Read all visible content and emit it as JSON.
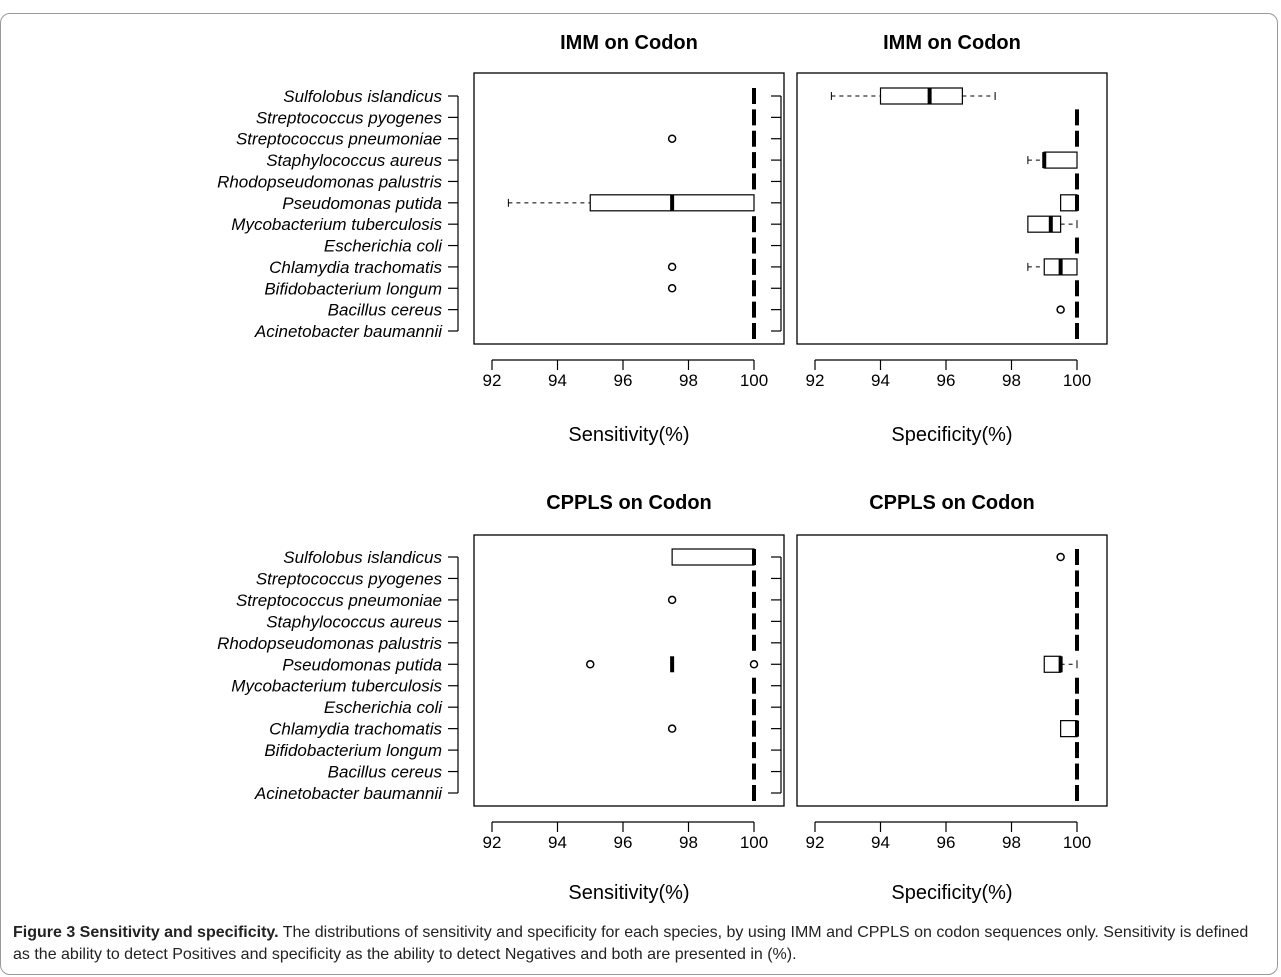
{
  "caption": {
    "label": "Figure 3 Sensitivity and specificity.",
    "text": " The distributions of sensitivity and specificity for each species, by using IMM and CPPLS on codon sequences only. Sensitivity is defined as the ability to detect Positives and specificity as the ability to detect Negatives and both are presented in (%)."
  },
  "chart_data": [
    {
      "type": "boxplot",
      "title": "IMM on Codon",
      "xlabel": "Sensitivity(%)",
      "xlim": [
        92,
        100
      ],
      "xticks": [
        92,
        94,
        96,
        98,
        100
      ],
      "categories": [
        "Sulfolobus islandicus",
        "Streptococcus pyogenes",
        "Streptococcus pneumoniae",
        "Staphylococcus aureus",
        "Rhodopseudomonas palustris",
        "Pseudomonas putida",
        "Mycobacterium tuberculosis",
        "Escherichia coli",
        "Chlamydia trachomatis",
        "Bifidobacterium longum",
        "Bacillus cereus",
        "Acinetobacter baumannii"
      ],
      "boxes": [
        {
          "min": 100,
          "q1": 100,
          "median": 100,
          "q3": 100,
          "max": 100,
          "outliers": []
        },
        {
          "min": 100,
          "q1": 100,
          "median": 100,
          "q3": 100,
          "max": 100,
          "outliers": []
        },
        {
          "min": 100,
          "q1": 100,
          "median": 100,
          "q3": 100,
          "max": 100,
          "outliers": [
            97.5
          ]
        },
        {
          "min": 100,
          "q1": 100,
          "median": 100,
          "q3": 100,
          "max": 100,
          "outliers": []
        },
        {
          "min": 100,
          "q1": 100,
          "median": 100,
          "q3": 100,
          "max": 100,
          "outliers": []
        },
        {
          "min": 92.5,
          "q1": 95,
          "median": 97.5,
          "q3": 100,
          "max": 100,
          "outliers": []
        },
        {
          "min": 100,
          "q1": 100,
          "median": 100,
          "q3": 100,
          "max": 100,
          "outliers": []
        },
        {
          "min": 100,
          "q1": 100,
          "median": 100,
          "q3": 100,
          "max": 100,
          "outliers": []
        },
        {
          "min": 100,
          "q1": 100,
          "median": 100,
          "q3": 100,
          "max": 100,
          "outliers": [
            97.5
          ]
        },
        {
          "min": 100,
          "q1": 100,
          "median": 100,
          "q3": 100,
          "max": 100,
          "outliers": [
            97.5
          ]
        },
        {
          "min": 100,
          "q1": 100,
          "median": 100,
          "q3": 100,
          "max": 100,
          "outliers": []
        },
        {
          "min": 100,
          "q1": 100,
          "median": 100,
          "q3": 100,
          "max": 100,
          "outliers": []
        }
      ]
    },
    {
      "type": "boxplot",
      "title": "IMM on Codon",
      "xlabel": "Specificity(%)",
      "xlim": [
        92,
        100
      ],
      "xticks": [
        92,
        94,
        96,
        98,
        100
      ],
      "categories": [
        "Sulfolobus islandicus",
        "Streptococcus pyogenes",
        "Streptococcus pneumoniae",
        "Staphylococcus aureus",
        "Rhodopseudomonas palustris",
        "Pseudomonas putida",
        "Mycobacterium tuberculosis",
        "Escherichia coli",
        "Chlamydia trachomatis",
        "Bifidobacterium longum",
        "Bacillus cereus",
        "Acinetobacter baumannii"
      ],
      "boxes": [
        {
          "min": 92.5,
          "q1": 94,
          "median": 95.5,
          "q3": 96.5,
          "max": 97.5,
          "outliers": []
        },
        {
          "min": 100,
          "q1": 100,
          "median": 100,
          "q3": 100,
          "max": 100,
          "outliers": []
        },
        {
          "min": 100,
          "q1": 100,
          "median": 100,
          "q3": 100,
          "max": 100,
          "outliers": []
        },
        {
          "min": 98.5,
          "q1": 99,
          "median": 99,
          "q3": 100,
          "max": 100,
          "outliers": []
        },
        {
          "min": 100,
          "q1": 100,
          "median": 100,
          "q3": 100,
          "max": 100,
          "outliers": []
        },
        {
          "min": 99.5,
          "q1": 99.5,
          "median": 100,
          "q3": 100,
          "max": 100,
          "outliers": []
        },
        {
          "min": 98.5,
          "q1": 98.5,
          "median": 99.2,
          "q3": 99.5,
          "max": 100,
          "outliers": []
        },
        {
          "min": 100,
          "q1": 100,
          "median": 100,
          "q3": 100,
          "max": 100,
          "outliers": []
        },
        {
          "min": 98.5,
          "q1": 99,
          "median": 99.5,
          "q3": 100,
          "max": 100,
          "outliers": []
        },
        {
          "min": 100,
          "q1": 100,
          "median": 100,
          "q3": 100,
          "max": 100,
          "outliers": []
        },
        {
          "min": 100,
          "q1": 100,
          "median": 100,
          "q3": 100,
          "max": 100,
          "outliers": [
            99.5
          ]
        },
        {
          "min": 100,
          "q1": 100,
          "median": 100,
          "q3": 100,
          "max": 100,
          "outliers": []
        }
      ]
    },
    {
      "type": "boxplot",
      "title": "CPPLS on Codon",
      "xlabel": "Sensitivity(%)",
      "xlim": [
        92,
        100
      ],
      "xticks": [
        92,
        94,
        96,
        98,
        100
      ],
      "categories": [
        "Sulfolobus islandicus",
        "Streptococcus pyogenes",
        "Streptococcus pneumoniae",
        "Staphylococcus aureus",
        "Rhodopseudomonas palustris",
        "Pseudomonas putida",
        "Mycobacterium tuberculosis",
        "Escherichia coli",
        "Chlamydia trachomatis",
        "Bifidobacterium longum",
        "Bacillus cereus",
        "Acinetobacter baumannii"
      ],
      "boxes": [
        {
          "min": 97.5,
          "q1": 97.5,
          "median": 100,
          "q3": 100,
          "max": 100,
          "outliers": []
        },
        {
          "min": 100,
          "q1": 100,
          "median": 100,
          "q3": 100,
          "max": 100,
          "outliers": []
        },
        {
          "min": 100,
          "q1": 100,
          "median": 100,
          "q3": 100,
          "max": 100,
          "outliers": [
            97.5
          ]
        },
        {
          "min": 100,
          "q1": 100,
          "median": 100,
          "q3": 100,
          "max": 100,
          "outliers": []
        },
        {
          "min": 100,
          "q1": 100,
          "median": 100,
          "q3": 100,
          "max": 100,
          "outliers": []
        },
        {
          "min": 97.5,
          "q1": 97.5,
          "median": 97.5,
          "q3": 97.5,
          "max": 97.5,
          "outliers": [
            95,
            100
          ]
        },
        {
          "min": 100,
          "q1": 100,
          "median": 100,
          "q3": 100,
          "max": 100,
          "outliers": []
        },
        {
          "min": 100,
          "q1": 100,
          "median": 100,
          "q3": 100,
          "max": 100,
          "outliers": []
        },
        {
          "min": 100,
          "q1": 100,
          "median": 100,
          "q3": 100,
          "max": 100,
          "outliers": [
            97.5
          ]
        },
        {
          "min": 100,
          "q1": 100,
          "median": 100,
          "q3": 100,
          "max": 100,
          "outliers": []
        },
        {
          "min": 100,
          "q1": 100,
          "median": 100,
          "q3": 100,
          "max": 100,
          "outliers": []
        },
        {
          "min": 100,
          "q1": 100,
          "median": 100,
          "q3": 100,
          "max": 100,
          "outliers": []
        }
      ]
    },
    {
      "type": "boxplot",
      "title": "CPPLS on Codon",
      "xlabel": "Specificity(%)",
      "xlim": [
        92,
        100
      ],
      "xticks": [
        92,
        94,
        96,
        98,
        100
      ],
      "categories": [
        "Sulfolobus islandicus",
        "Streptococcus pyogenes",
        "Streptococcus pneumoniae",
        "Staphylococcus aureus",
        "Rhodopseudomonas palustris",
        "Pseudomonas putida",
        "Mycobacterium tuberculosis",
        "Escherichia coli",
        "Chlamydia trachomatis",
        "Bifidobacterium longum",
        "Bacillus cereus",
        "Acinetobacter baumannii"
      ],
      "boxes": [
        {
          "min": 100,
          "q1": 100,
          "median": 100,
          "q3": 100,
          "max": 100,
          "outliers": [
            99.5
          ]
        },
        {
          "min": 100,
          "q1": 100,
          "median": 100,
          "q3": 100,
          "max": 100,
          "outliers": []
        },
        {
          "min": 100,
          "q1": 100,
          "median": 100,
          "q3": 100,
          "max": 100,
          "outliers": []
        },
        {
          "min": 100,
          "q1": 100,
          "median": 100,
          "q3": 100,
          "max": 100,
          "outliers": []
        },
        {
          "min": 100,
          "q1": 100,
          "median": 100,
          "q3": 100,
          "max": 100,
          "outliers": []
        },
        {
          "min": 99,
          "q1": 99,
          "median": 99.5,
          "q3": 99.5,
          "max": 100,
          "outliers": []
        },
        {
          "min": 100,
          "q1": 100,
          "median": 100,
          "q3": 100,
          "max": 100,
          "outliers": []
        },
        {
          "min": 100,
          "q1": 100,
          "median": 100,
          "q3": 100,
          "max": 100,
          "outliers": []
        },
        {
          "min": 99.5,
          "q1": 99.5,
          "median": 100,
          "q3": 100,
          "max": 100,
          "outliers": []
        },
        {
          "min": 100,
          "q1": 100,
          "median": 100,
          "q3": 100,
          "max": 100,
          "outliers": []
        },
        {
          "min": 100,
          "q1": 100,
          "median": 100,
          "q3": 100,
          "max": 100,
          "outliers": []
        },
        {
          "min": 100,
          "q1": 100,
          "median": 100,
          "q3": 100,
          "max": 100,
          "outliers": []
        }
      ]
    }
  ]
}
